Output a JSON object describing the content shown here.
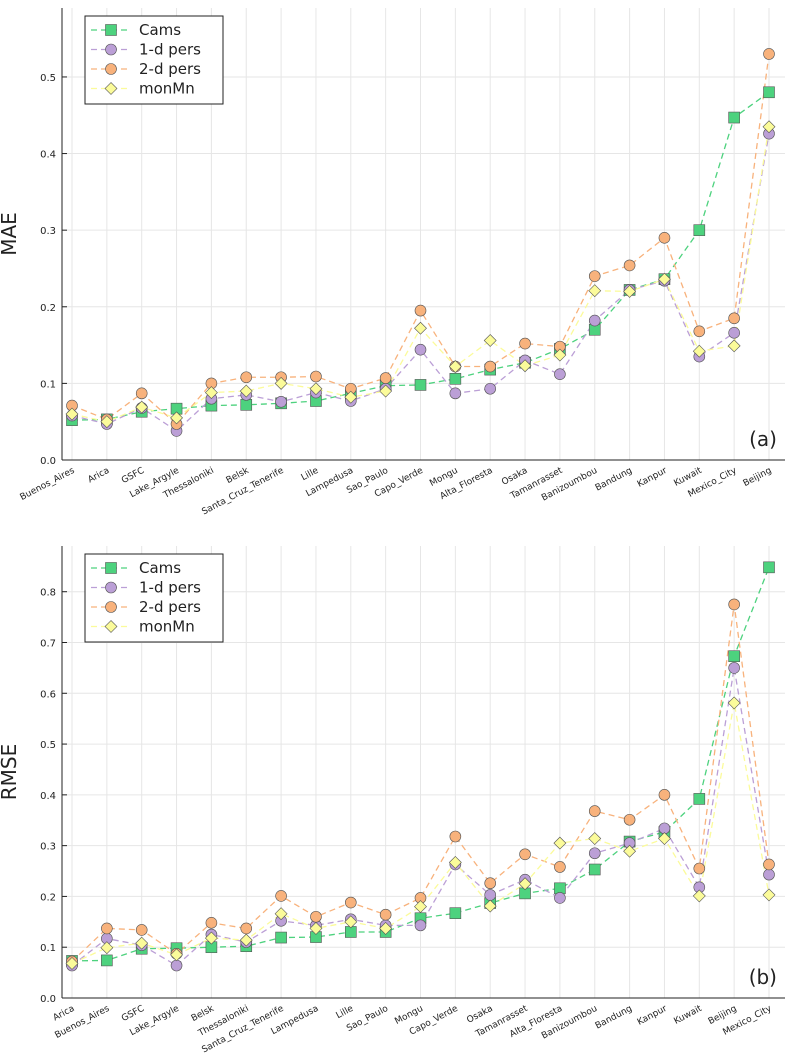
{
  "chart_data": [
    {
      "type": "line",
      "y_label": "MAE",
      "annotation": "(a)",
      "grid": true,
      "legend": "top-left",
      "categories": [
        "Buenos_Aires",
        "Arica",
        "GSFC",
        "Lake_Argyle",
        "Thessaloniki",
        "Belsk",
        "Santa_Cruz_Tenerife",
        "Lille",
        "Lampedusa",
        "Sao_Paulo",
        "Capo_Verde",
        "Mongu",
        "Alta_Floresta",
        "Osaka",
        "Tamanrasset",
        "Banizoumbou",
        "Bandung",
        "Kanpur",
        "Kuwait",
        "Mexico_City",
        "Beijing"
      ],
      "ylim": [
        0,
        0.59
      ],
      "yticks": [
        {
          "value": 0,
          "label": "0.0"
        },
        0.1,
        0.2,
        0.3,
        0.4,
        0.5
      ],
      "series": [
        {
          "name": "Cams",
          "color": "#4dd27e",
          "marker": "square",
          "values": [
            0.052,
            0.053,
            0.063,
            0.067,
            0.071,
            0.072,
            0.074,
            0.077,
            0.087,
            0.097,
            0.098,
            0.106,
            0.118,
            0.127,
            0.145,
            0.17,
            0.222,
            0.236,
            0.3,
            0.447,
            0.48
          ]
        },
        {
          "name": "1-d pers",
          "color": "#bb9fd6",
          "marker": "circle",
          "values": [
            0.058,
            0.047,
            0.068,
            0.038,
            0.08,
            0.085,
            0.076,
            0.088,
            0.077,
            0.093,
            0.144,
            0.087,
            0.093,
            0.13,
            0.112,
            0.182,
            0.222,
            0.234,
            0.135,
            0.166,
            0.426
          ]
        },
        {
          "name": "2-d pers",
          "color": "#f8b27c",
          "marker": "circle",
          "values": [
            0.071,
            0.053,
            0.087,
            0.047,
            0.1,
            0.108,
            0.108,
            0.109,
            0.093,
            0.107,
            0.195,
            0.122,
            0.122,
            0.152,
            0.148,
            0.24,
            0.254,
            0.29,
            0.168,
            0.185,
            0.53
          ]
        },
        {
          "name": "monMn",
          "color": "#fbfb9a",
          "marker": "diamond",
          "values": [
            0.06,
            0.05,
            0.069,
            0.055,
            0.088,
            0.09,
            0.1,
            0.093,
            0.082,
            0.09,
            0.172,
            0.122,
            0.156,
            0.123,
            0.137,
            0.221,
            0.22,
            0.236,
            0.142,
            0.149,
            0.435
          ]
        }
      ]
    },
    {
      "type": "line",
      "y_label": "RMSE",
      "annotation": "(b)",
      "grid": true,
      "legend": "top-left",
      "categories": [
        "Arica",
        "Buenos_Aires",
        "GSFC",
        "Lake_Argyle",
        "Belsk",
        "Thessaloniki",
        "Santa_Cruz_Tenerife",
        "Lampedusa",
        "Lille",
        "Sao_Paulo",
        "Mongu",
        "Capo_Verde",
        "Osaka",
        "Tamanrasset",
        "Alta_Floresta",
        "Banizoumbou",
        "Bandung",
        "Kanpur",
        "Kuwait",
        "Beijing",
        "Mexico_City"
      ],
      "ylim": [
        0,
        0.89
      ],
      "yticks": [
        {
          "value": 0,
          "label": "0.0"
        },
        0.1,
        0.2,
        0.3,
        0.4,
        0.5,
        0.6,
        0.7,
        0.8
      ],
      "series": [
        {
          "name": "Cams",
          "color": "#4dd27e",
          "marker": "square",
          "values": [
            0.073,
            0.074,
            0.097,
            0.098,
            0.1,
            0.102,
            0.119,
            0.12,
            0.13,
            0.13,
            0.157,
            0.167,
            0.187,
            0.206,
            0.216,
            0.253,
            0.308,
            0.327,
            0.392,
            0.673,
            0.848
          ]
        },
        {
          "name": "1-d pers",
          "color": "#bb9fd6",
          "marker": "circle",
          "values": [
            0.064,
            0.117,
            0.104,
            0.064,
            0.125,
            0.11,
            0.152,
            0.143,
            0.155,
            0.143,
            0.143,
            0.263,
            0.203,
            0.233,
            0.197,
            0.285,
            0.305,
            0.334,
            0.218,
            0.65,
            0.243
          ]
        },
        {
          "name": "2-d pers",
          "color": "#f8b27c",
          "marker": "circle",
          "values": [
            0.072,
            0.137,
            0.134,
            0.087,
            0.148,
            0.137,
            0.201,
            0.16,
            0.188,
            0.164,
            0.197,
            0.318,
            0.226,
            0.283,
            0.258,
            0.368,
            0.351,
            0.4,
            0.255,
            0.775,
            0.263
          ]
        },
        {
          "name": "monMn",
          "color": "#fbfb9a",
          "marker": "diamond",
          "values": [
            0.068,
            0.099,
            0.108,
            0.085,
            0.118,
            0.114,
            0.166,
            0.137,
            0.15,
            0.137,
            0.18,
            0.267,
            0.181,
            0.225,
            0.305,
            0.314,
            0.289,
            0.314,
            0.201,
            0.581,
            0.203
          ]
        }
      ]
    }
  ]
}
